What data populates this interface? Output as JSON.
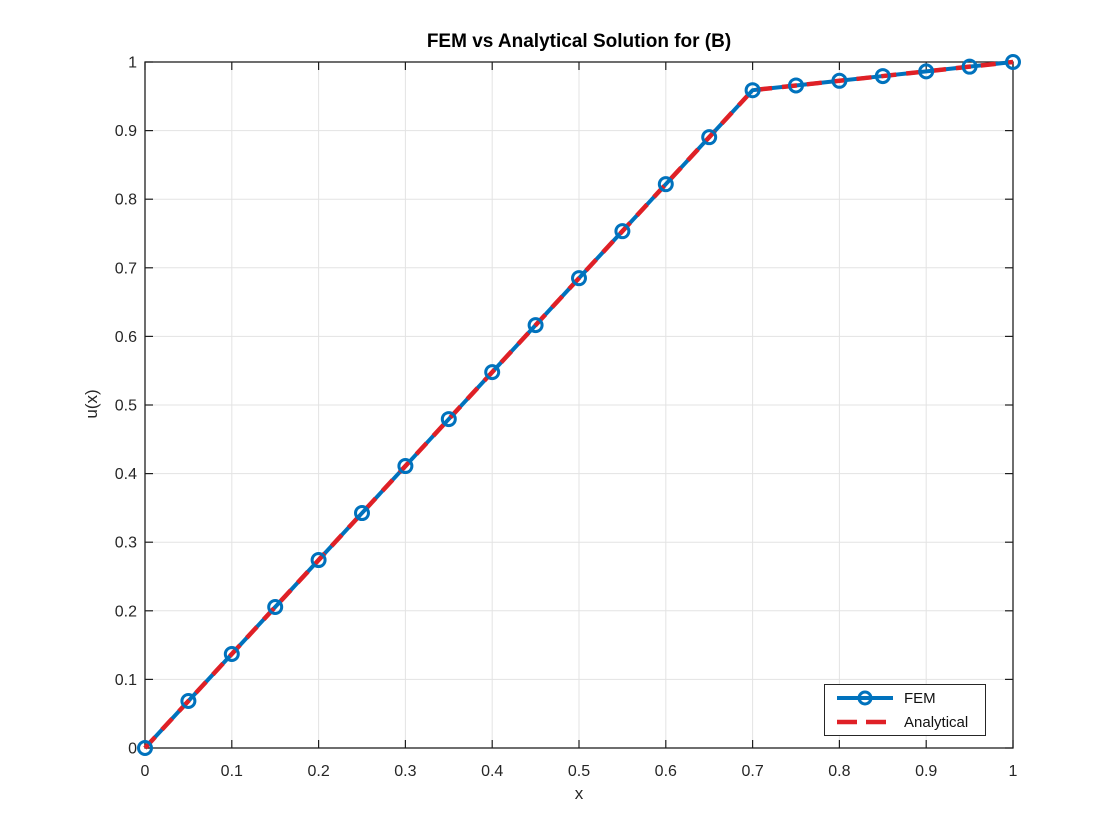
{
  "colors": {
    "fem_blue": "#0072BD",
    "analytical_red": "#DF2026",
    "grid": "#E3E3E3",
    "axis": "#1F1F1F",
    "tick_label": "#262626",
    "background": "#FFFFFF",
    "legend_border": "#262626"
  },
  "chart_data": {
    "type": "line",
    "title": "FEM vs Analytical Solution for (B)",
    "xlabel": "x",
    "ylabel": "u(x)",
    "xlim": [
      0,
      1
    ],
    "ylim": [
      0,
      1
    ],
    "grid": true,
    "legend_position": "bottom-right",
    "xticks": [
      0,
      0.1,
      0.2,
      0.3,
      0.4,
      0.5,
      0.6,
      0.7,
      0.8,
      0.9,
      1
    ],
    "xtick_labels": [
      "0",
      "0.1",
      "0.2",
      "0.3",
      "0.4",
      "0.5",
      "0.6",
      "0.7",
      "0.8",
      "0.9",
      "1"
    ],
    "yticks": [
      0,
      0.1,
      0.2,
      0.3,
      0.4,
      0.5,
      0.6,
      0.7,
      0.8,
      0.9,
      1
    ],
    "ytick_labels": [
      "0",
      "0.1",
      "0.2",
      "0.3",
      "0.4",
      "0.5",
      "0.6",
      "0.7",
      "0.8",
      "0.9",
      "1"
    ],
    "x": [
      0,
      0.05,
      0.1,
      0.15,
      0.2,
      0.25,
      0.3,
      0.35,
      0.4,
      0.45,
      0.5,
      0.55,
      0.6,
      0.65,
      0.7,
      0.75,
      0.8,
      0.85,
      0.9,
      0.95,
      1
    ],
    "series": [
      {
        "name": "FEM",
        "color": "#0072BD",
        "line_style": "solid",
        "line_width": 4,
        "marker": "circle",
        "marker_size": 6.5,
        "values": [
          0.0,
          0.0685,
          0.137,
          0.2055,
          0.274,
          0.3425,
          0.411,
          0.4795,
          0.5479,
          0.6164,
          0.6849,
          0.7534,
          0.8219,
          0.8904,
          0.9589,
          0.9658,
          0.9726,
          0.9795,
          0.9863,
          0.9932,
          1.0
        ]
      },
      {
        "name": "Analytical",
        "color": "#DF2026",
        "line_style": "dashed",
        "line_width": 4.5,
        "marker": "none",
        "values": [
          0.0,
          0.0685,
          0.137,
          0.2055,
          0.274,
          0.3425,
          0.411,
          0.4795,
          0.5479,
          0.6164,
          0.6849,
          0.7534,
          0.8219,
          0.8904,
          0.9589,
          0.9658,
          0.9726,
          0.9795,
          0.9863,
          0.9932,
          1.0
        ]
      }
    ]
  }
}
